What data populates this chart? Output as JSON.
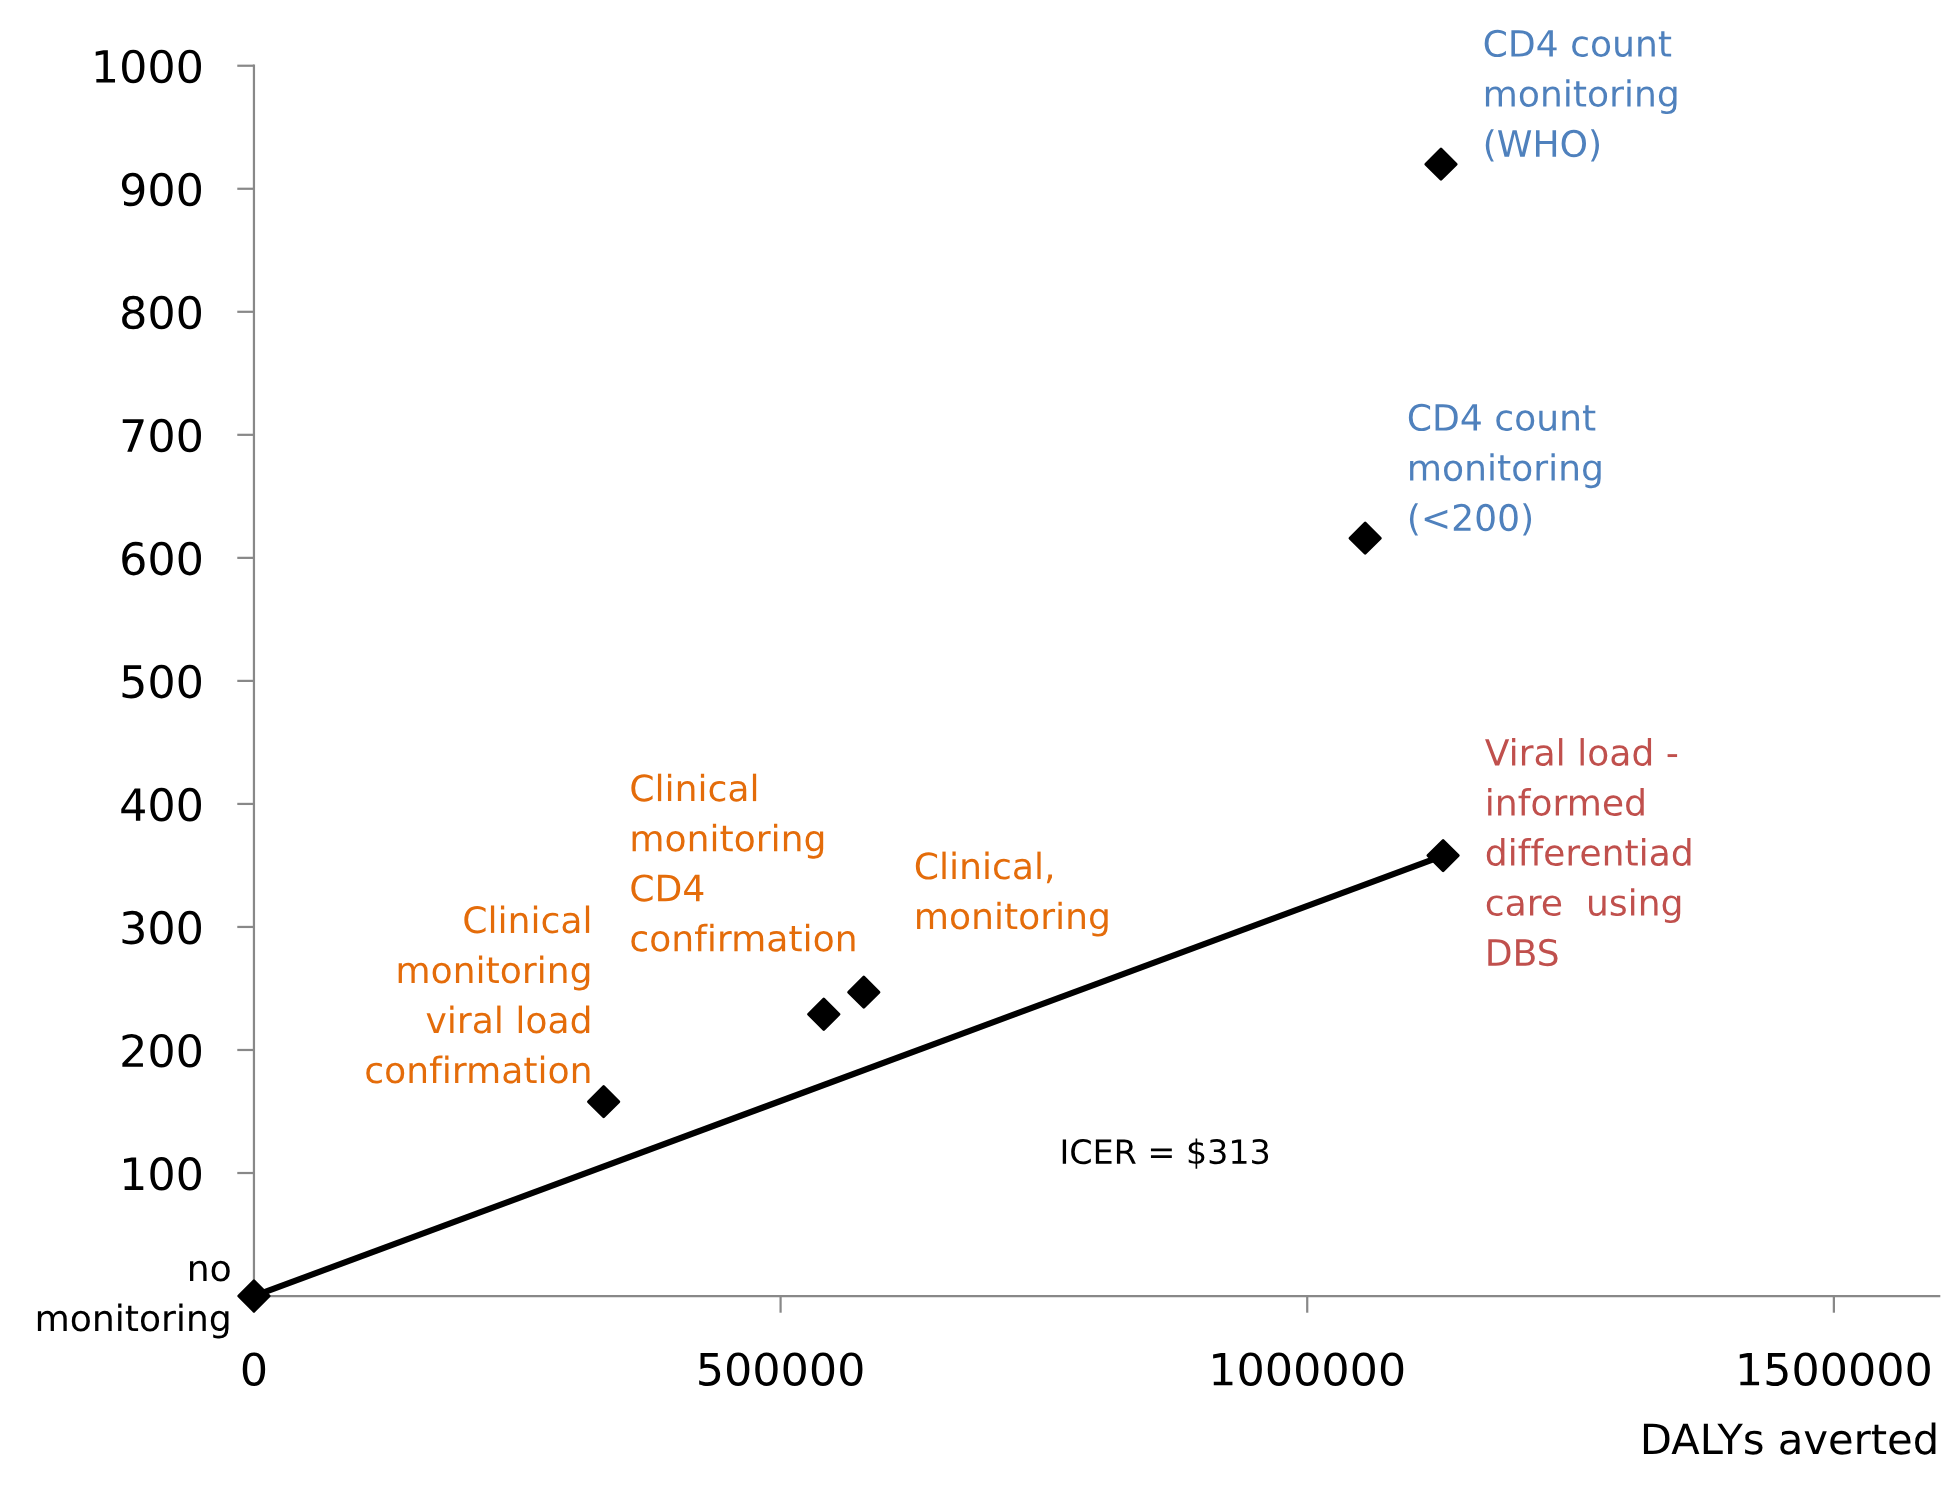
{
  "chart_data": {
    "type": "scatter",
    "xlabel": "DALYs averted",
    "xlim": [
      0,
      1600000
    ],
    "ylim": [
      0,
      1000
    ],
    "xticks": [
      0,
      500000,
      1000000,
      1500000
    ],
    "yticks": [
      100,
      200,
      300,
      400,
      500,
      600,
      700,
      800,
      900,
      1000
    ],
    "grid": false,
    "legend": false,
    "marker": "diamond",
    "series": [
      {
        "color": "#000000",
        "x": [
          0,
          332000,
          541000,
          579000,
          1055000,
          1127000,
          1129000
        ],
        "values": [
          0,
          158,
          229,
          247,
          616,
          920,
          358
        ]
      },
      {
        "type": "line",
        "color": "#000000",
        "marker": "none",
        "line_style": "solid",
        "x": [
          0,
          1129000
        ],
        "values": [
          0,
          358
        ]
      }
    ],
    "annotations": [
      {
        "text": "no\nmonitoring",
        "x": 0,
        "y": 0
      },
      {
        "text": " Clinical\nmonitoring\nviral load\nconfirmation",
        "x": 332000,
        "y": 158
      },
      {
        "text": "Clinical\nmonitoring\nCD4\nconfirmation",
        "x": 541000,
        "y": 229
      },
      {
        "text": "Clinical,\nmonitoring",
        "x": 579000,
        "y": 247
      },
      {
        "text": "CD4 count\nmonitoring\n(<200)",
        "x": 1055000,
        "y": 616
      },
      {
        "text": "CD4 count\nmonitoring\n(WHO)",
        "x": 1127000,
        "y": 920
      },
      {
        "text": "Viral load -\ninformed\ndifferentiad\ncare  using\nDBS",
        "x": 1129000,
        "y": 358
      },
      "ICER = $313"
    ]
  }
}
